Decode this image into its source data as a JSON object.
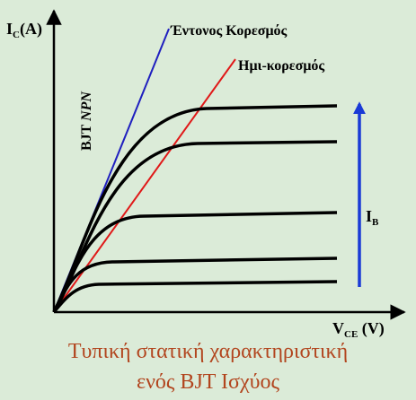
{
  "axes": {
    "y_label_main": "I",
    "y_label_sub": "C",
    "y_label_unit": "(A)",
    "x_label_main": "V",
    "x_label_sub": "CE",
    "x_label_unit": " (V)"
  },
  "labels": {
    "device_prefix": "BJT ",
    "device_type": "NPN",
    "hard_saturation": "Έντονος Κορεσμός",
    "quasi_saturation": "Ημι-κορεσμός",
    "ib_main": "I",
    "ib_sub": "B"
  },
  "caption": {
    "line1": "Τυπική στατική χαρακτηριστική",
    "line2": "ενός BJT Ισχύος"
  },
  "colors": {
    "background": "#dbebd8",
    "axes": "#000000",
    "curves": "#000000",
    "hard_saturation_line": "#1f1fbf",
    "quasi_saturation_line": "#e01818",
    "ib_arrow": "#1a3ad6",
    "caption": "#b2451e"
  }
}
